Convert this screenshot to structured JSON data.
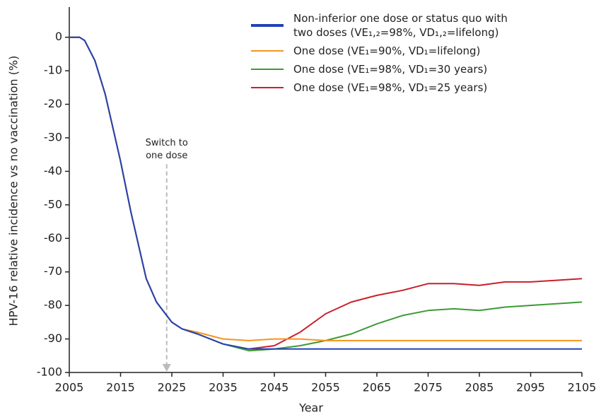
{
  "chart_data": {
    "type": "line",
    "xlabel": "Year",
    "ylabel": "HPV-16 relative incidence vs no vaccination (%)",
    "x": [
      2005,
      2007,
      2008,
      2010,
      2012,
      2015,
      2017,
      2020,
      2022,
      2025,
      2027,
      2030,
      2035,
      2040,
      2045,
      2050,
      2055,
      2060,
      2065,
      2070,
      2075,
      2080,
      2085,
      2090,
      2095,
      2100,
      2105
    ],
    "series": [
      {
        "name": "Non-inferior one dose or status quo with two doses (VE₁,₂=98%, VD₁,₂=lifelong)",
        "color": "#2342b8",
        "values": [
          0,
          0,
          -1,
          -7,
          -17,
          -37,
          -52,
          -72,
          -79,
          -85,
          -87,
          -88.5,
          -91.5,
          -93,
          -93,
          -93,
          -93,
          -93,
          -93,
          -93,
          -93,
          -93,
          -93,
          -93,
          -93,
          -93,
          -93
        ]
      },
      {
        "name": "One dose (VE₁=90%, VD₁=lifelong)",
        "color": "#f7941d",
        "values": [
          0,
          0,
          -1,
          -7,
          -17,
          -37,
          -52,
          -72,
          -79,
          -85,
          -87,
          -88,
          -90,
          -90.5,
          -90,
          -90,
          -90.5,
          -90.5,
          -90.5,
          -90.5,
          -90.5,
          -90.5,
          -90.5,
          -90.5,
          -90.5,
          -90.5,
          -90.5
        ]
      },
      {
        "name": "One dose (VE₁=98%, VD₁=30 years)",
        "color": "#3d9a35",
        "values": [
          0,
          0,
          -1,
          -7,
          -17,
          -37,
          -52,
          -72,
          -79,
          -85,
          -87,
          -88.5,
          -91.5,
          -93.5,
          -93,
          -92,
          -90.5,
          -88.5,
          -85.5,
          -83,
          -81.5,
          -81,
          -81.5,
          -80.5,
          -80,
          -79.5,
          -79
        ]
      },
      {
        "name": "One dose (VE₁=98%, VD₁=25 years)",
        "color": "#c8202a",
        "values": [
          0,
          0,
          -1,
          -7,
          -17,
          -37,
          -52,
          -72,
          -79,
          -85,
          -87,
          -88.5,
          -91.5,
          -93,
          -92,
          -88,
          -82.5,
          -79,
          -77,
          -75.5,
          -73.5,
          -73.5,
          -74,
          -73,
          -73,
          -72.5,
          -72
        ]
      }
    ],
    "annotation": {
      "text": [
        "Switch to",
        "one dose"
      ],
      "x": 2024
    },
    "xlim": [
      2005,
      2105
    ],
    "xticks": [
      2005,
      2015,
      2025,
      2035,
      2045,
      2055,
      2065,
      2075,
      2085,
      2095,
      2105
    ],
    "ylim": [
      -100,
      9
    ],
    "yticks": [
      0,
      -10,
      -20,
      -30,
      -40,
      -50,
      -60,
      -70,
      -80,
      -90,
      -100
    ]
  }
}
